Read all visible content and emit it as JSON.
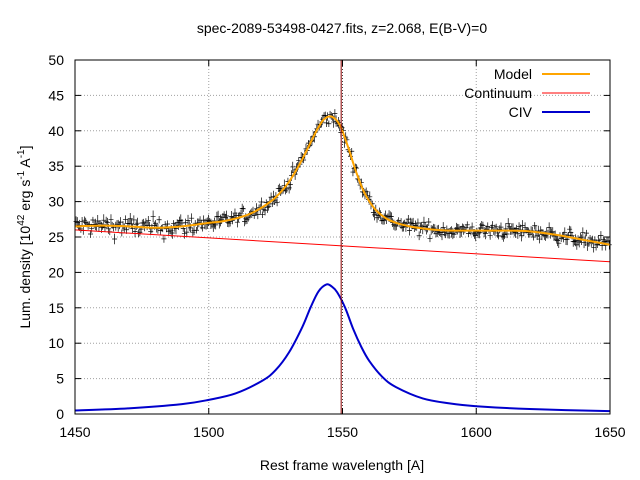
{
  "chart_data": {
    "type": "line",
    "title": "spec-2089-53498-0427.fits, z=2.068, E(B-V)=0",
    "xlabel": "Rest frame wavelength [A]",
    "ylabel": {
      "prefix": "Lum. density [10",
      "exp1": "42",
      "mid1": " erg s",
      "exp2": "-1",
      "mid2": " A",
      "exp3": "-1",
      "suffix": "]"
    },
    "xlim": [
      1450,
      1650
    ],
    "ylim": [
      0,
      50
    ],
    "xticks": [
      1450,
      1500,
      1550,
      1600,
      1650
    ],
    "yticks": [
      0,
      5,
      10,
      15,
      20,
      25,
      30,
      35,
      40,
      45,
      50
    ],
    "grid": true,
    "legend_position": "top-right",
    "vertical_line": {
      "x": 1549.5,
      "color": "#8b0000"
    },
    "series": [
      {
        "name": "Model",
        "color": "#ffa500",
        "x": [
          1450,
          1460,
          1470,
          1480,
          1490,
          1500,
          1505,
          1510,
          1515,
          1520,
          1525,
          1530,
          1535,
          1540,
          1543,
          1546,
          1549,
          1552,
          1555,
          1558,
          1562,
          1566,
          1570,
          1575,
          1580,
          1585,
          1590,
          1600,
          1610,
          1620,
          1630,
          1640,
          1650
        ],
        "y": [
          26.5,
          26.6,
          26.5,
          26.3,
          26.5,
          27.0,
          27.2,
          27.6,
          28.2,
          29.2,
          30.6,
          32.8,
          36.0,
          39.8,
          41.6,
          42.0,
          40.8,
          37.8,
          34.3,
          31.4,
          29.0,
          27.7,
          27.0,
          26.5,
          26.2,
          26.0,
          25.9,
          25.9,
          25.9,
          25.8,
          25.3,
          24.6,
          23.9
        ]
      },
      {
        "name": "Continuum",
        "color": "#ff0000",
        "x": [
          1450,
          1650
        ],
        "y": [
          26.0,
          21.5
        ]
      },
      {
        "name": "CIV",
        "color": "#0000cc",
        "x": [
          1450,
          1470,
          1490,
          1500,
          1510,
          1520,
          1525,
          1530,
          1535,
          1538,
          1541,
          1544,
          1546,
          1548,
          1551,
          1554,
          1557,
          1560,
          1565,
          1570,
          1580,
          1590,
          1600,
          1620,
          1650
        ],
        "y": [
          0.5,
          0.8,
          1.4,
          2.0,
          2.9,
          4.7,
          6.2,
          8.7,
          12.3,
          15.0,
          17.3,
          18.3,
          18.0,
          17.2,
          15.0,
          12.0,
          9.5,
          7.5,
          5.2,
          3.8,
          2.2,
          1.5,
          1.1,
          0.7,
          0.4
        ]
      }
    ],
    "observed": {
      "marker": "cross",
      "color": "#000000",
      "x": [
        1450,
        1460,
        1470,
        1480,
        1490,
        1500,
        1505,
        1510,
        1515,
        1520,
        1525,
        1530,
        1535,
        1540,
        1543,
        1546,
        1549,
        1552,
        1555,
        1558,
        1562,
        1566,
        1570,
        1575,
        1580,
        1585,
        1590,
        1600,
        1610,
        1620,
        1630,
        1640,
        1650
      ],
      "y": [
        26.5,
        26.6,
        26.5,
        26.3,
        26.5,
        27.0,
        27.2,
        27.6,
        28.2,
        29.2,
        30.6,
        32.8,
        36.0,
        39.8,
        41.6,
        42.0,
        40.8,
        37.8,
        34.3,
        31.4,
        29.0,
        27.7,
        27.0,
        26.5,
        26.2,
        26.0,
        25.9,
        25.9,
        25.9,
        25.8,
        25.3,
        24.6,
        23.9
      ]
    }
  }
}
